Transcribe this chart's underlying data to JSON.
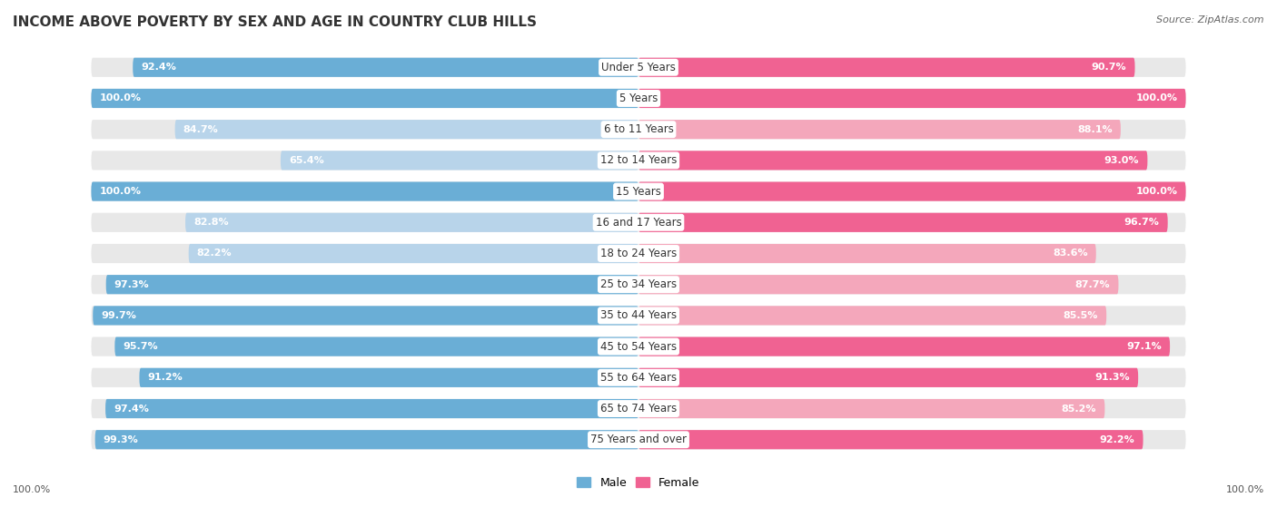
{
  "title": "INCOME ABOVE POVERTY BY SEX AND AGE IN COUNTRY CLUB HILLS",
  "source": "Source: ZipAtlas.com",
  "categories": [
    "Under 5 Years",
    "5 Years",
    "6 to 11 Years",
    "12 to 14 Years",
    "15 Years",
    "16 and 17 Years",
    "18 to 24 Years",
    "25 to 34 Years",
    "35 to 44 Years",
    "45 to 54 Years",
    "55 to 64 Years",
    "65 to 74 Years",
    "75 Years and over"
  ],
  "male_values": [
    92.4,
    100.0,
    84.7,
    65.4,
    100.0,
    82.8,
    82.2,
    97.3,
    99.7,
    95.7,
    91.2,
    97.4,
    99.3
  ],
  "female_values": [
    90.7,
    100.0,
    88.1,
    93.0,
    100.0,
    96.7,
    83.6,
    87.7,
    85.5,
    97.1,
    91.3,
    85.2,
    92.2
  ],
  "male_color_high": "#6aaed6",
  "male_color_low": "#b8d4ea",
  "female_color_high": "#f06292",
  "female_color_low": "#f4a7bb",
  "track_color": "#e8e8e8",
  "bg_color": "#ffffff",
  "title_fontsize": 11,
  "label_fontsize": 8.5,
  "value_fontsize": 8,
  "legend_fontsize": 9,
  "source_fontsize": 8,
  "bottom_label": "100.0%",
  "bar_height": 0.62,
  "max_val": 100.0
}
